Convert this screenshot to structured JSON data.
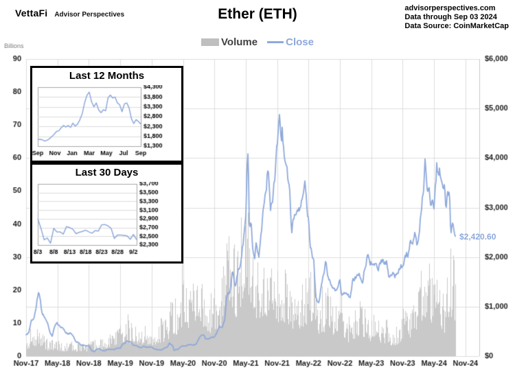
{
  "header": {
    "logo": "VettaFi",
    "logo_sub": "Advisor Perspectives",
    "title": "Ether (ETH)",
    "source_lines": [
      "advisorperspectives.com",
      "Data through Sep 03 2024",
      "Data Source: CoinMarketCap"
    ]
  },
  "legend": {
    "volume_label": "Volume",
    "close_label": "Close"
  },
  "colors": {
    "close_line": "#8EA9DB",
    "volume_bar": "#C9C9C9",
    "grid": "#DCDCDC",
    "plot_edge": "#C8C8C8",
    "axis_text": "#1a1a1a",
    "legend_volume_text": "#404040",
    "billions_text": "#7F7F7F"
  },
  "chart_data": [
    {
      "id": "main",
      "type": "line+bar",
      "title": "Ether (ETH)",
      "series_names": [
        "Volume",
        "Close"
      ],
      "left_axis": {
        "label": "Billions",
        "ticks": [
          "90",
          "80",
          "70",
          "60",
          "50",
          "40",
          "30",
          "20",
          "10",
          "0"
        ],
        "range": [
          0,
          90
        ]
      },
      "right_axis": {
        "ticks": [
          "$6,000",
          "$5,000",
          "$4,000",
          "$3,000",
          "$2,000",
          "$1,000",
          "$0"
        ],
        "range": [
          0,
          6000
        ]
      },
      "x_axis": {
        "ticks": [
          "Nov-17",
          "May-18",
          "Nov-18",
          "May-19",
          "Nov-19",
          "May-20",
          "Nov-20",
          "May-21",
          "Nov-21",
          "May-22",
          "Nov-22",
          "May-23",
          "Nov-23",
          "May-24",
          "Nov-24"
        ],
        "months_per_tick": 6
      },
      "grid": true,
      "legend_position": "top-center",
      "end_month_index": 82.1,
      "last_price": 2420.6,
      "last_price_label": "$2,420.60",
      "close_series_month_price": [
        [
          0,
          430
        ],
        [
          0.5,
          470
        ],
        [
          1,
          720
        ],
        [
          1.5,
          760
        ],
        [
          2,
          1050
        ],
        [
          2.4,
          1330
        ],
        [
          2.8,
          1060
        ],
        [
          3,
          880
        ],
        [
          3.4,
          800
        ],
        [
          4,
          700
        ],
        [
          4.5,
          500
        ],
        [
          5,
          400
        ],
        [
          5.5,
          620
        ],
        [
          6,
          670
        ],
        [
          6.5,
          580
        ],
        [
          7,
          580
        ],
        [
          7.5,
          480
        ],
        [
          8,
          450
        ],
        [
          8.5,
          470
        ],
        [
          9,
          410
        ],
        [
          9.5,
          290
        ],
        [
          10,
          280
        ],
        [
          10.5,
          220
        ],
        [
          11,
          225
        ],
        [
          11.5,
          205
        ],
        [
          12,
          210
        ],
        [
          12.5,
          115
        ],
        [
          13,
          90
        ],
        [
          13.5,
          140
        ],
        [
          14,
          150
        ],
        [
          14.5,
          118
        ],
        [
          15,
          105
        ],
        [
          15.5,
          135
        ],
        [
          16,
          137
        ],
        [
          16.5,
          135
        ],
        [
          17,
          140
        ],
        [
          17.5,
          165
        ],
        [
          18,
          160
        ],
        [
          18.5,
          250
        ],
        [
          19,
          268
        ],
        [
          19.3,
          310
        ],
        [
          19.6,
          290
        ],
        [
          20,
          290
        ],
        [
          20.5,
          215
        ],
        [
          21,
          218
        ],
        [
          21.5,
          185
        ],
        [
          22,
          170
        ],
        [
          22.5,
          200
        ],
        [
          23,
          180
        ],
        [
          23.5,
          185
        ],
        [
          24,
          182
        ],
        [
          24.5,
          150
        ],
        [
          25,
          132
        ],
        [
          25.5,
          128
        ],
        [
          26,
          130
        ],
        [
          26.5,
          165
        ],
        [
          27,
          180
        ],
        [
          27.4,
          265
        ],
        [
          27.8,
          225
        ],
        [
          28,
          220
        ],
        [
          28.3,
          110
        ],
        [
          28.6,
          135
        ],
        [
          29,
          135
        ],
        [
          29.5,
          185
        ],
        [
          30,
          210
        ],
        [
          30.5,
          200
        ],
        [
          31,
          230
        ],
        [
          31.5,
          230
        ],
        [
          32,
          225
        ],
        [
          32.5,
          240
        ],
        [
          33,
          345
        ],
        [
          33.3,
          395
        ],
        [
          33.6,
          430
        ],
        [
          34,
          430
        ],
        [
          34.3,
          350
        ],
        [
          34.6,
          345
        ],
        [
          35,
          355
        ],
        [
          35.5,
          390
        ],
        [
          36,
          385
        ],
        [
          36.5,
          480
        ],
        [
          37,
          600
        ],
        [
          37.5,
          590
        ],
        [
          38,
          730
        ],
        [
          38.3,
          1150
        ],
        [
          38.6,
          1250
        ],
        [
          39,
          1300
        ],
        [
          39.5,
          1750
        ],
        [
          40,
          1420
        ],
        [
          40.5,
          1700
        ],
        [
          41,
          1850
        ],
        [
          41.5,
          2300
        ],
        [
          42,
          2770
        ],
        [
          42.3,
          3900
        ],
        [
          42.45,
          4170
        ],
        [
          42.7,
          2500
        ],
        [
          43,
          2700
        ],
        [
          43.3,
          2200
        ],
        [
          43.7,
          1900
        ],
        [
          44,
          2270
        ],
        [
          44.5,
          2000
        ],
        [
          45,
          2530
        ],
        [
          45.5,
          3150
        ],
        [
          46,
          3430
        ],
        [
          46.3,
          3900
        ],
        [
          46.7,
          3000
        ],
        [
          47,
          3000
        ],
        [
          47.5,
          3550
        ],
        [
          48,
          4290
        ],
        [
          48.3,
          4700
        ],
        [
          48.5,
          4810
        ],
        [
          48.8,
          4300
        ],
        [
          49,
          4630
        ],
        [
          49.3,
          4100
        ],
        [
          49.7,
          3900
        ],
        [
          50,
          3680
        ],
        [
          50.5,
          3200
        ],
        [
          50.8,
          2450
        ],
        [
          51,
          2690
        ],
        [
          51.5,
          2900
        ],
        [
          52,
          2920
        ],
        [
          52.5,
          3000
        ],
        [
          53,
          3280
        ],
        [
          53.3,
          3520
        ],
        [
          53.7,
          3000
        ],
        [
          54,
          2730
        ],
        [
          54.3,
          2300
        ],
        [
          54.7,
          2000
        ],
        [
          55,
          1940
        ],
        [
          55.4,
          1200
        ],
        [
          55.8,
          1070
        ],
        [
          56,
          1070
        ],
        [
          56.5,
          1500
        ],
        [
          57,
          1680
        ],
        [
          57.3,
          1900
        ],
        [
          57.7,
          1600
        ],
        [
          58,
          1550
        ],
        [
          58.5,
          1400
        ],
        [
          59,
          1330
        ],
        [
          59.5,
          1350
        ],
        [
          60,
          1570
        ],
        [
          60.3,
          1200
        ],
        [
          60.6,
          1250
        ],
        [
          61,
          1300
        ],
        [
          61.5,
          1250
        ],
        [
          62,
          1200
        ],
        [
          62.5,
          1550
        ],
        [
          63,
          1590
        ],
        [
          63.5,
          1650
        ],
        [
          64,
          1605
        ],
        [
          64.3,
          1450
        ],
        [
          64.7,
          1750
        ],
        [
          65,
          1820
        ],
        [
          65.3,
          2100
        ],
        [
          65.7,
          1900
        ],
        [
          66,
          1870
        ],
        [
          66.5,
          1830
        ],
        [
          67,
          1870
        ],
        [
          67.3,
          1700
        ],
        [
          67.7,
          1900
        ],
        [
          68,
          1930
        ],
        [
          68.5,
          1880
        ],
        [
          69,
          1860
        ],
        [
          69.3,
          1650
        ],
        [
          69.7,
          1640
        ],
        [
          70,
          1650
        ],
        [
          70.5,
          1630
        ],
        [
          71,
          1670
        ],
        [
          71.5,
          1790
        ],
        [
          72,
          1800
        ],
        [
          72.5,
          2050
        ],
        [
          73,
          2050
        ],
        [
          73.5,
          2350
        ],
        [
          74,
          2280
        ],
        [
          74.3,
          2500
        ],
        [
          74.7,
          2250
        ],
        [
          75,
          2280
        ],
        [
          75.5,
          2900
        ],
        [
          76,
          3380
        ],
        [
          76.3,
          4070
        ],
        [
          76.7,
          3300
        ],
        [
          77,
          3500
        ],
        [
          77.3,
          3050
        ],
        [
          77.7,
          3150
        ],
        [
          78,
          3010
        ],
        [
          78.5,
          3800
        ],
        [
          79,
          3760
        ],
        [
          79.5,
          3450
        ],
        [
          80,
          3440
        ],
        [
          80.3,
          2950
        ],
        [
          80.7,
          3380
        ],
        [
          81,
          3230
        ],
        [
          81.2,
          2500
        ],
        [
          81.5,
          2700
        ],
        [
          81.8,
          2550
        ],
        [
          82,
          2450
        ],
        [
          82.1,
          2420.6
        ]
      ],
      "volume_envelope_monthly_billions": [
        5,
        8,
        9,
        7,
        5,
        5,
        5,
        4,
        4,
        4,
        4,
        3.5,
        4,
        5,
        5,
        6,
        7,
        9,
        11,
        12,
        11,
        9,
        9,
        10,
        9,
        9,
        12,
        14,
        18,
        17,
        27,
        22,
        22,
        26,
        25,
        18,
        22,
        22,
        38,
        42,
        33,
        40,
        63,
        35,
        28,
        30,
        32,
        28,
        30,
        26,
        28,
        22,
        20,
        22,
        28,
        26,
        18,
        20,
        22,
        16,
        22,
        12,
        12,
        15,
        18,
        15,
        12,
        14,
        10,
        12,
        8,
        10,
        14,
        16,
        16,
        20,
        34,
        28,
        26,
        22,
        20,
        36,
        28
      ]
    },
    {
      "id": "last-12-months",
      "type": "line",
      "title": "Last 12 Months",
      "y_ticks": [
        "$4,300",
        "$3,800",
        "$3,300",
        "$2,800",
        "$2,300",
        "$1,800",
        "$1,300"
      ],
      "y_range": [
        1300,
        4300
      ],
      "x_ticks": [
        "Sep",
        "Nov",
        "Jan",
        "Mar",
        "May",
        "Jul",
        "Sep"
      ],
      "x_tick_pos": [
        0,
        2,
        4,
        6,
        8,
        10,
        12
      ],
      "x_span": 12,
      "values": [
        1630,
        1650,
        1620,
        1560,
        1600,
        1680,
        1790,
        1900,
        2050,
        2080,
        2230,
        2350,
        2270,
        2350,
        2250,
        2470,
        2320,
        2420,
        2650,
        2950,
        3500,
        3880,
        4050,
        3550,
        3300,
        3500,
        3150,
        3000,
        3150,
        3100,
        3750,
        3900,
        3750,
        3800,
        3500,
        3400,
        3050,
        3450,
        3500,
        3250,
        2700,
        2450,
        2650,
        2550,
        2430
      ]
    },
    {
      "id": "last-30-days",
      "type": "line",
      "title": "Last 30 Days",
      "y_ticks": [
        "$3,700",
        "$3,500",
        "$3,300",
        "$3,100",
        "$2,900",
        "$2,700",
        "$2,500",
        "$2,300"
      ],
      "y_range": [
        2300,
        3700
      ],
      "x_ticks": [
        "8/3",
        "8/8",
        "8/13",
        "8/18",
        "8/23",
        "8/28",
        "9/2"
      ],
      "x_tick_pos": [
        0,
        5,
        10,
        15,
        20,
        25,
        30
      ],
      "x_span": 31,
      "values": [
        2900,
        2680,
        2420,
        2460,
        2340,
        2680,
        2600,
        2600,
        2550,
        2720,
        2700,
        2660,
        2560,
        2590,
        2610,
        2640,
        2600,
        2570,
        2630,
        2620,
        2760,
        2770,
        2740,
        2680,
        2450,
        2530,
        2530,
        2520,
        2510,
        2430,
        2540,
        2420.6
      ]
    }
  ]
}
